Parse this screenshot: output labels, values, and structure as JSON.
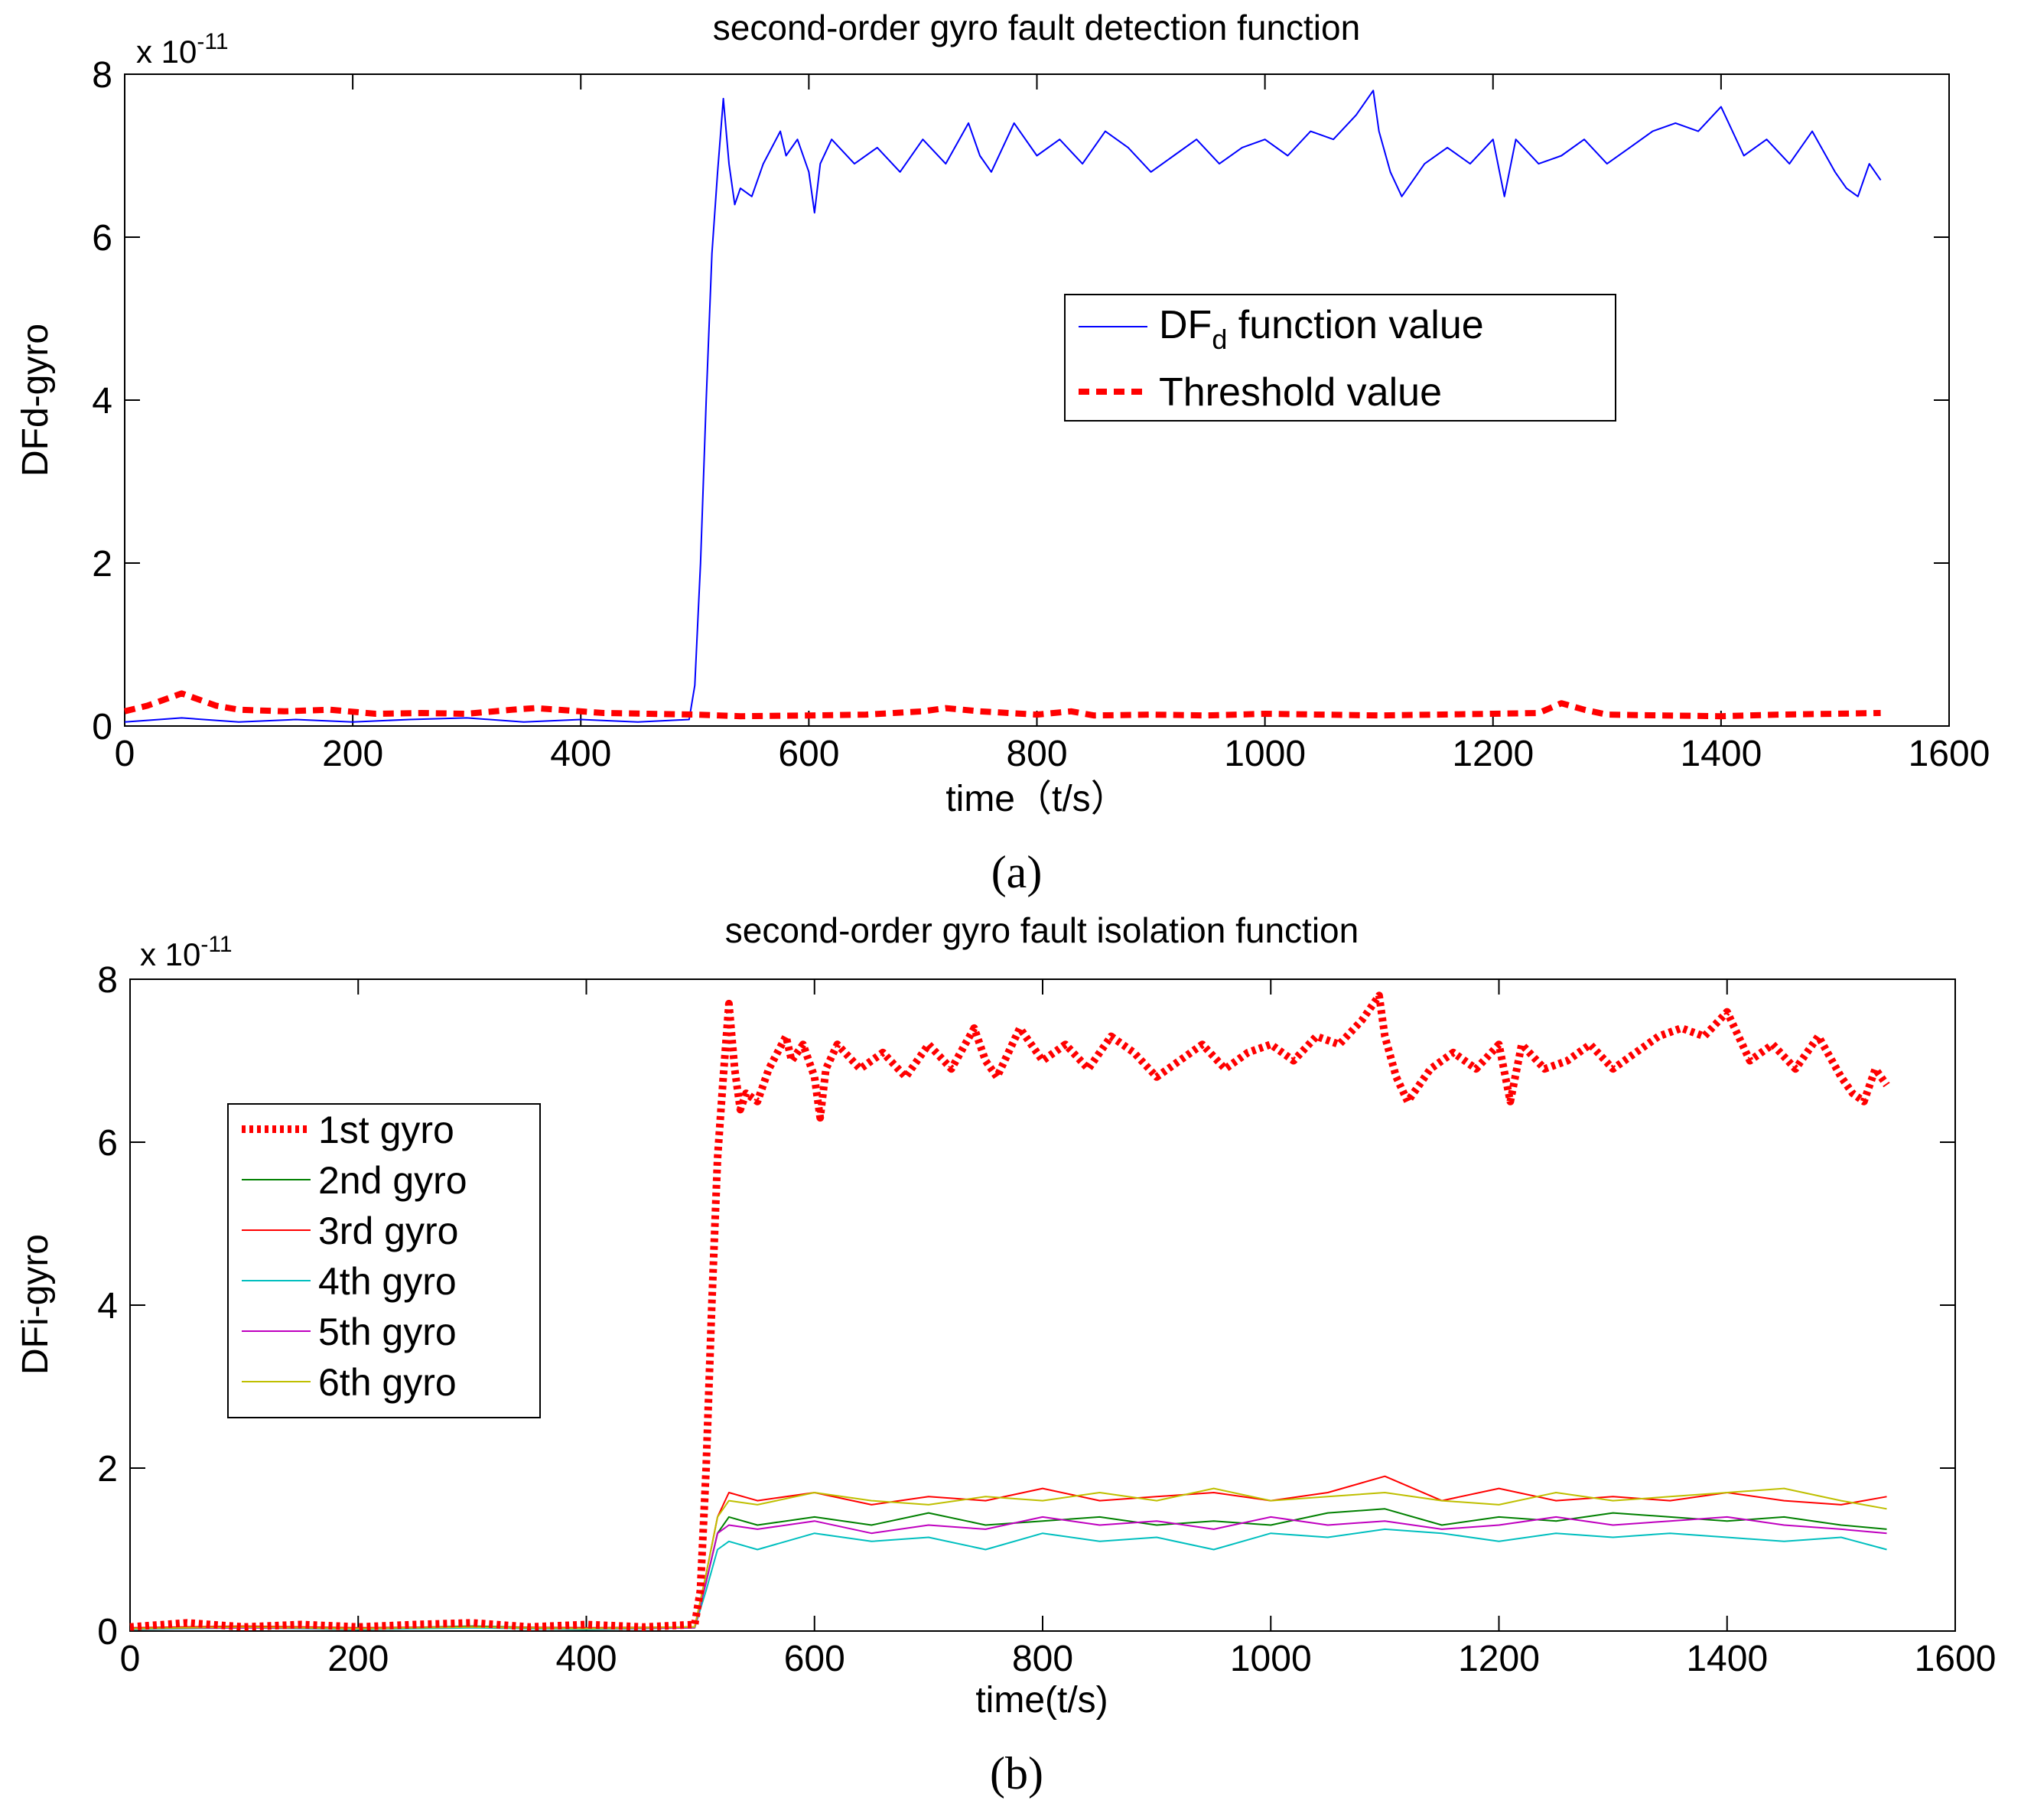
{
  "chart_data": [
    {
      "type": "line",
      "panel_label": "(a)",
      "title": "second-order gyro fault detection function",
      "xlabel": "time（t/s）",
      "ylabel": "DFd-gyro",
      "exponent_label": "x 10",
      "exponent_power": "-11",
      "xlim": [
        0,
        1600
      ],
      "ylim": [
        0,
        8
      ],
      "xticks": [
        "0",
        "200",
        "400",
        "600",
        "800",
        "1000",
        "1200",
        "1400",
        "1600"
      ],
      "yticks": [
        "0",
        "2",
        "4",
        "6",
        "8"
      ],
      "grid": false,
      "legend_position": "center-right",
      "series": [
        {
          "name": "DF_d function value",
          "legend_main": "DF",
          "legend_sub": "d",
          "legend_rest": " function value",
          "color": "#0000ff",
          "style": "solid",
          "x": [
            0,
            50,
            100,
            150,
            200,
            250,
            300,
            350,
            400,
            450,
            495,
            500,
            505,
            510,
            515,
            520,
            525,
            530,
            535,
            540,
            550,
            560,
            575,
            580,
            590,
            600,
            605,
            610,
            620,
            640,
            660,
            680,
            700,
            720,
            740,
            750,
            760,
            780,
            800,
            820,
            840,
            860,
            880,
            900,
            920,
            940,
            960,
            980,
            1000,
            1020,
            1040,
            1060,
            1080,
            1095,
            1100,
            1110,
            1120,
            1140,
            1160,
            1180,
            1200,
            1210,
            1220,
            1240,
            1260,
            1280,
            1300,
            1320,
            1340,
            1360,
            1380,
            1400,
            1420,
            1440,
            1460,
            1480,
            1500,
            1510,
            1520,
            1530,
            1540
          ],
          "y": [
            0.05,
            0.1,
            0.05,
            0.08,
            0.05,
            0.08,
            0.1,
            0.05,
            0.08,
            0.05,
            0.08,
            0.5,
            2.0,
            4.0,
            5.8,
            6.8,
            7.7,
            6.9,
            6.4,
            6.6,
            6.5,
            6.9,
            7.3,
            7.0,
            7.2,
            6.8,
            6.3,
            6.9,
            7.2,
            6.9,
            7.1,
            6.8,
            7.2,
            6.9,
            7.4,
            7.0,
            6.8,
            7.4,
            7.0,
            7.2,
            6.9,
            7.3,
            7.1,
            6.8,
            7.0,
            7.2,
            6.9,
            7.1,
            7.2,
            7.0,
            7.3,
            7.2,
            7.5,
            7.8,
            7.3,
            6.8,
            6.5,
            6.9,
            7.1,
            6.9,
            7.2,
            6.5,
            7.2,
            6.9,
            7.0,
            7.2,
            6.9,
            7.1,
            7.3,
            7.4,
            7.3,
            7.6,
            7.0,
            7.2,
            6.9,
            7.3,
            6.8,
            6.6,
            6.5,
            6.9,
            6.7
          ]
        },
        {
          "name": "Threshold value",
          "legend_main": "Threshold value",
          "color": "#ff0000",
          "style": "dashed-thick",
          "x": [
            0,
            20,
            40,
            50,
            60,
            80,
            100,
            140,
            180,
            220,
            260,
            300,
            340,
            360,
            380,
            420,
            460,
            500,
            540,
            600,
            650,
            700,
            720,
            750,
            800,
            830,
            850,
            900,
            950,
            1000,
            1050,
            1100,
            1150,
            1200,
            1240,
            1260,
            1280,
            1300,
            1350,
            1400,
            1450,
            1500,
            1540
          ],
          "y": [
            0.18,
            0.25,
            0.35,
            0.4,
            0.35,
            0.25,
            0.2,
            0.18,
            0.2,
            0.15,
            0.16,
            0.15,
            0.2,
            0.22,
            0.2,
            0.16,
            0.15,
            0.14,
            0.12,
            0.13,
            0.14,
            0.18,
            0.22,
            0.18,
            0.14,
            0.18,
            0.13,
            0.14,
            0.13,
            0.15,
            0.14,
            0.13,
            0.14,
            0.15,
            0.16,
            0.28,
            0.2,
            0.14,
            0.13,
            0.12,
            0.14,
            0.15,
            0.16
          ]
        }
      ]
    },
    {
      "type": "line",
      "panel_label": "(b)",
      "title": "second-order gyro fault isolation function",
      "xlabel": "time(t/s)",
      "ylabel": "DFi-gyro",
      "exponent_label": "x 10",
      "exponent_power": "-11",
      "xlim": [
        0,
        1600
      ],
      "ylim": [
        0,
        8
      ],
      "xticks": [
        "0",
        "200",
        "400",
        "600",
        "800",
        "1000",
        "1200",
        "1400",
        "1600"
      ],
      "yticks": [
        "0",
        "2",
        "4",
        "6",
        "8"
      ],
      "grid": false,
      "legend_position": "center-left",
      "series": [
        {
          "name": "1st gyro",
          "color": "#ff0000",
          "style": "dotted-thick",
          "x": [
            0,
            50,
            100,
            150,
            200,
            250,
            300,
            350,
            400,
            450,
            495,
            500,
            505,
            510,
            515,
            520,
            525,
            530,
            535,
            540,
            550,
            560,
            575,
            580,
            590,
            600,
            605,
            610,
            620,
            640,
            660,
            680,
            700,
            720,
            740,
            750,
            760,
            780,
            800,
            820,
            840,
            860,
            880,
            900,
            920,
            940,
            960,
            980,
            1000,
            1020,
            1040,
            1060,
            1080,
            1095,
            1100,
            1110,
            1120,
            1140,
            1160,
            1180,
            1200,
            1210,
            1220,
            1240,
            1260,
            1280,
            1300,
            1320,
            1340,
            1360,
            1380,
            1400,
            1420,
            1440,
            1460,
            1480,
            1500,
            1510,
            1520,
            1530,
            1540
          ],
          "y": [
            0.05,
            0.1,
            0.05,
            0.08,
            0.05,
            0.08,
            0.1,
            0.05,
            0.08,
            0.05,
            0.08,
            0.5,
            2.0,
            4.0,
            5.8,
            6.8,
            7.7,
            6.9,
            6.4,
            6.6,
            6.5,
            6.9,
            7.3,
            7.0,
            7.2,
            6.8,
            6.3,
            6.9,
            7.2,
            6.9,
            7.1,
            6.8,
            7.2,
            6.9,
            7.4,
            7.0,
            6.8,
            7.4,
            7.0,
            7.2,
            6.9,
            7.3,
            7.1,
            6.8,
            7.0,
            7.2,
            6.9,
            7.1,
            7.2,
            7.0,
            7.3,
            7.2,
            7.5,
            7.8,
            7.3,
            6.8,
            6.5,
            6.9,
            7.1,
            6.9,
            7.2,
            6.5,
            7.2,
            6.9,
            7.0,
            7.2,
            6.9,
            7.1,
            7.3,
            7.4,
            7.3,
            7.6,
            7.0,
            7.2,
            6.9,
            7.3,
            6.8,
            6.6,
            6.5,
            6.9,
            6.7
          ]
        },
        {
          "name": "2nd gyro",
          "color": "#008000",
          "style": "solid",
          "x": [
            0,
            100,
            200,
            300,
            400,
            495,
            505,
            515,
            525,
            550,
            600,
            650,
            700,
            750,
            800,
            850,
            900,
            950,
            1000,
            1050,
            1100,
            1150,
            1200,
            1250,
            1300,
            1350,
            1400,
            1450,
            1500,
            1540
          ],
          "y": [
            0.03,
            0.05,
            0.03,
            0.06,
            0.03,
            0.05,
            0.6,
            1.2,
            1.4,
            1.3,
            1.4,
            1.3,
            1.45,
            1.3,
            1.35,
            1.4,
            1.3,
            1.35,
            1.3,
            1.45,
            1.5,
            1.3,
            1.4,
            1.35,
            1.45,
            1.4,
            1.35,
            1.4,
            1.3,
            1.25
          ]
        },
        {
          "name": "3rd gyro",
          "color": "#ff0000",
          "style": "solid",
          "x": [
            0,
            100,
            200,
            300,
            400,
            495,
            505,
            515,
            525,
            550,
            600,
            650,
            700,
            750,
            800,
            850,
            900,
            950,
            1000,
            1050,
            1100,
            1150,
            1200,
            1250,
            1300,
            1350,
            1400,
            1450,
            1500,
            1540
          ],
          "y": [
            0.04,
            0.06,
            0.04,
            0.05,
            0.04,
            0.05,
            0.7,
            1.4,
            1.7,
            1.6,
            1.7,
            1.55,
            1.65,
            1.6,
            1.75,
            1.6,
            1.65,
            1.7,
            1.6,
            1.7,
            1.9,
            1.6,
            1.75,
            1.6,
            1.65,
            1.6,
            1.7,
            1.6,
            1.55,
            1.65
          ]
        },
        {
          "name": "4th gyro",
          "color": "#00bfbf",
          "style": "solid",
          "x": [
            0,
            100,
            200,
            300,
            400,
            495,
            505,
            515,
            525,
            550,
            600,
            650,
            700,
            750,
            800,
            850,
            900,
            950,
            1000,
            1050,
            1100,
            1150,
            1200,
            1250,
            1300,
            1350,
            1400,
            1450,
            1500,
            1540
          ],
          "y": [
            0.02,
            0.04,
            0.02,
            0.04,
            0.02,
            0.04,
            0.5,
            1.0,
            1.1,
            1.0,
            1.2,
            1.1,
            1.15,
            1.0,
            1.2,
            1.1,
            1.15,
            1.0,
            1.2,
            1.15,
            1.25,
            1.2,
            1.1,
            1.2,
            1.15,
            1.2,
            1.15,
            1.1,
            1.15,
            1.0
          ]
        },
        {
          "name": "5th gyro",
          "color": "#bf00bf",
          "style": "solid",
          "x": [
            0,
            100,
            200,
            300,
            400,
            495,
            505,
            515,
            525,
            550,
            600,
            650,
            700,
            750,
            800,
            850,
            900,
            950,
            1000,
            1050,
            1100,
            1150,
            1200,
            1250,
            1300,
            1350,
            1400,
            1450,
            1500,
            1540
          ],
          "y": [
            0.03,
            0.04,
            0.03,
            0.05,
            0.03,
            0.04,
            0.6,
            1.2,
            1.3,
            1.25,
            1.35,
            1.2,
            1.3,
            1.25,
            1.4,
            1.3,
            1.35,
            1.25,
            1.4,
            1.3,
            1.35,
            1.25,
            1.3,
            1.4,
            1.3,
            1.35,
            1.4,
            1.3,
            1.25,
            1.2
          ]
        },
        {
          "name": "6th gyro",
          "color": "#bfbf00",
          "style": "solid",
          "x": [
            0,
            100,
            200,
            300,
            400,
            495,
            505,
            515,
            525,
            550,
            600,
            650,
            700,
            750,
            800,
            850,
            900,
            950,
            1000,
            1050,
            1100,
            1150,
            1200,
            1250,
            1300,
            1350,
            1400,
            1450,
            1500,
            1540
          ],
          "y": [
            0.03,
            0.05,
            0.03,
            0.05,
            0.03,
            0.05,
            0.7,
            1.4,
            1.6,
            1.55,
            1.7,
            1.6,
            1.55,
            1.65,
            1.6,
            1.7,
            1.6,
            1.75,
            1.6,
            1.65,
            1.7,
            1.6,
            1.55,
            1.7,
            1.6,
            1.65,
            1.7,
            1.75,
            1.6,
            1.5
          ]
        }
      ]
    }
  ]
}
